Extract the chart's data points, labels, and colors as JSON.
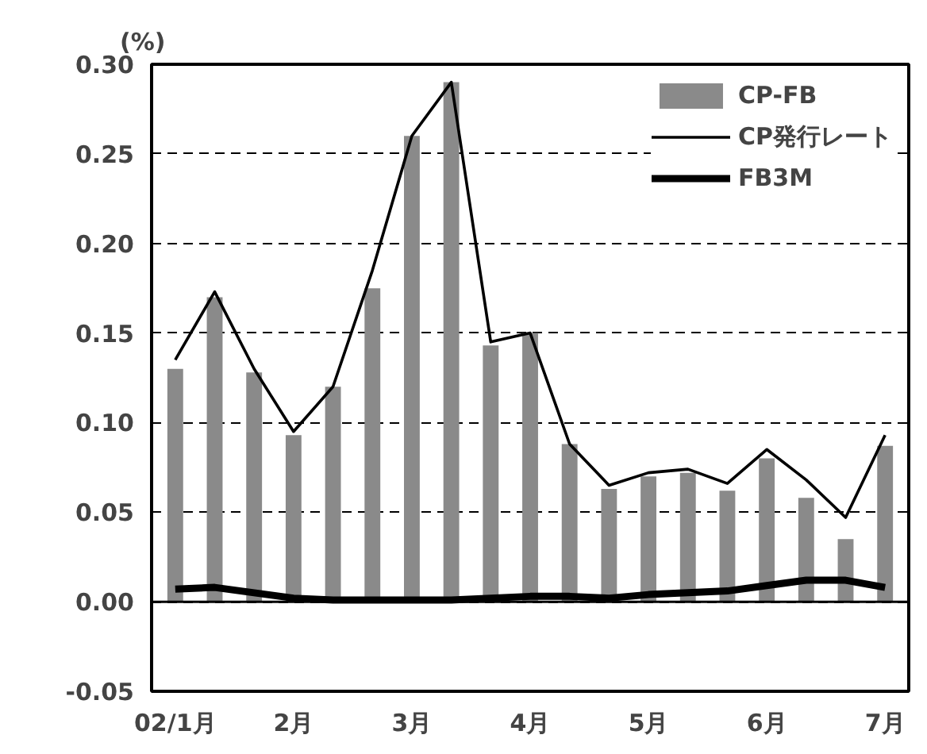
{
  "chart_data": {
    "type": "bar",
    "ylabel": "(%)",
    "categories": [
      "02/1月",
      null,
      null,
      "2月",
      null,
      null,
      "3月",
      null,
      null,
      "4月",
      null,
      null,
      "5月",
      null,
      null,
      "6月",
      null,
      null,
      "7月"
    ],
    "series": [
      {
        "name": "CP-FB",
        "color": "#8a8a8a",
        "values": [
          0.13,
          0.17,
          0.128,
          0.093,
          0.12,
          0.175,
          0.26,
          0.29,
          0.143,
          0.15,
          0.088,
          0.063,
          0.07,
          0.072,
          0.062,
          0.08,
          0.058,
          0.035,
          0.087
        ]
      },
      {
        "name": "CP発行レート",
        "type": "line",
        "color": "#000000",
        "values": [
          0.135,
          0.173,
          0.13,
          0.095,
          0.12,
          0.185,
          0.26,
          0.29,
          0.145,
          0.15,
          0.088,
          0.065,
          0.072,
          0.074,
          0.066,
          0.085,
          0.068,
          0.047,
          0.093
        ]
      },
      {
        "name": "FB3M",
        "type": "line",
        "color": "#000000",
        "values": [
          0.007,
          0.008,
          0.005,
          0.002,
          0.001,
          0.001,
          0.001,
          0.001,
          0.002,
          0.003,
          0.003,
          0.002,
          0.004,
          0.005,
          0.006,
          0.009,
          0.012,
          0.012,
          0.008
        ]
      }
    ],
    "ylim": [
      -0.05,
      0.3
    ],
    "yticks": [
      {
        "value": -0.05,
        "label": "-0.05"
      },
      {
        "value": 0,
        "label": "0.00"
      },
      {
        "value": 0.05,
        "label": "0.05"
      },
      {
        "value": 0.1,
        "label": "0.10"
      },
      {
        "value": 0.15,
        "label": "0.15"
      },
      {
        "value": 0.2,
        "label": "0.20"
      },
      {
        "value": 0.25,
        "label": "0.25"
      },
      {
        "value": 0.3,
        "label": "0.30"
      }
    ],
    "grid": "y",
    "legend": "top right",
    "line_style": "solid"
  }
}
